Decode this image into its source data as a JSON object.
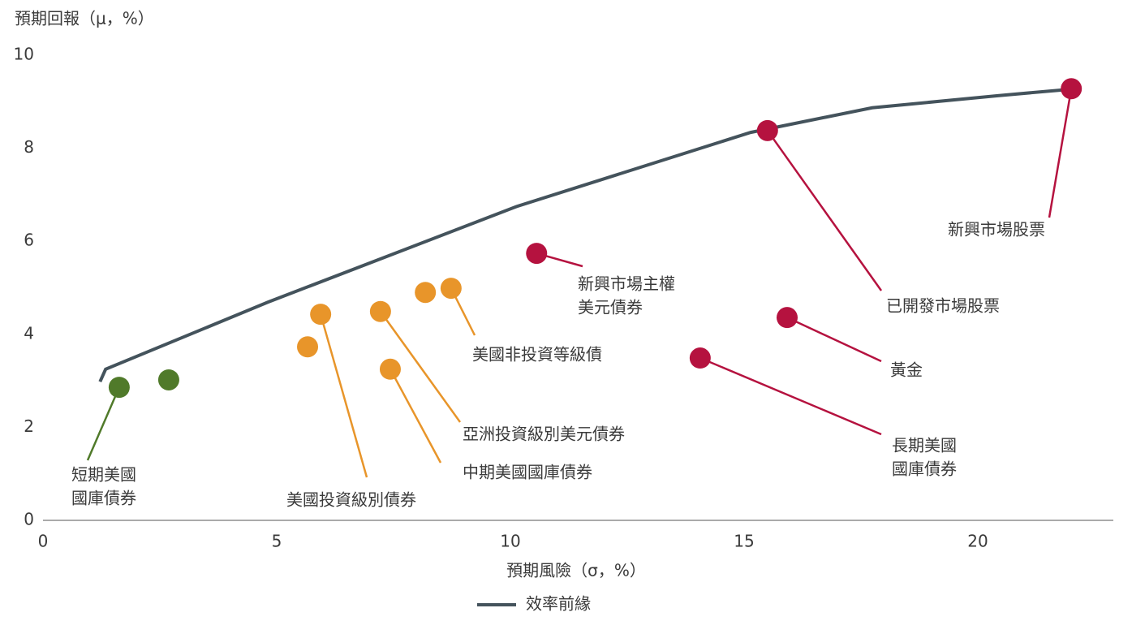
{
  "chart_data": {
    "type": "scatter",
    "y_label": "預期回報（μ，%）",
    "x_label": "預期風險（σ，%）",
    "xlim": [
      0,
      23
    ],
    "ylim": [
      0,
      10
    ],
    "xticks": [
      0,
      5,
      10,
      15,
      20
    ],
    "yticks": [
      0,
      2,
      4,
      6,
      8,
      10
    ],
    "grid": false,
    "series": [
      {
        "name": "效率前緣",
        "color": "#44535c",
        "x": [
          1.22,
          1.34,
          4.81,
          10.14,
          15.14,
          17.74,
          20.43,
          22.0
        ],
        "values": [
          2.98,
          3.25,
          4.69,
          6.75,
          8.34,
          8.87,
          9.13,
          9.27
        ]
      }
    ],
    "points": [
      {
        "x": 1.63,
        "y": 2.86,
        "color": "#507a2a",
        "label": [
          "短期美國",
          "國庫債券"
        ]
      },
      {
        "x": 2.69,
        "y": 3.02,
        "color": "#507a2a"
      },
      {
        "x": 5.66,
        "y": 3.73,
        "color": "#e8952a"
      },
      {
        "x": 5.94,
        "y": 4.43,
        "color": "#e8952a",
        "label": [
          "美國投資級別債券"
        ]
      },
      {
        "x": 7.22,
        "y": 4.49,
        "color": "#e8952a",
        "label": [
          "亞洲投資級別美元債券"
        ]
      },
      {
        "x": 7.43,
        "y": 3.25,
        "color": "#e8952a",
        "label": [
          "中期美國國庫債券"
        ]
      },
      {
        "x": 8.18,
        "y": 4.9,
        "color": "#e8952a"
      },
      {
        "x": 8.73,
        "y": 4.99,
        "color": "#e8952a",
        "label": [
          "美國非投資等級債"
        ]
      },
      {
        "x": 10.56,
        "y": 5.74,
        "color": "#b5123f",
        "label": [
          "新興市場主權",
          "美元債券"
        ]
      },
      {
        "x": 14.06,
        "y": 3.49,
        "color": "#b5123f",
        "label": [
          "長期美國",
          "國庫債券"
        ]
      },
      {
        "x": 15.5,
        "y": 8.38,
        "color": "#b5123f",
        "label": [
          "已開發市場股票"
        ]
      },
      {
        "x": 15.92,
        "y": 4.36,
        "color": "#b5123f",
        "label": [
          "黃金"
        ]
      },
      {
        "x": 22.0,
        "y": 9.28,
        "color": "#b5123f",
        "label": [
          "新興市場股票"
        ]
      }
    ]
  }
}
